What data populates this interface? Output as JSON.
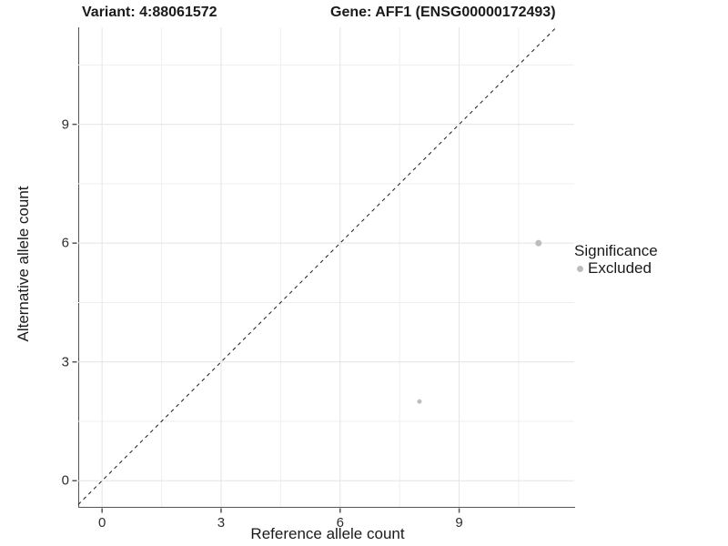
{
  "header": {
    "variant_title": "Variant: 4:88061572",
    "gene_title": "Gene: AFF1 (ENSG00000172493)"
  },
  "chart_data": {
    "type": "scatter",
    "title": "Variant: 4:88061572   Gene: AFF1 (ENSG00000172493)",
    "xlabel": "Reference allele count",
    "ylabel": "Alternative allele count",
    "xlim": [
      -0.6,
      11.9
    ],
    "ylim": [
      -0.66,
      11.45
    ],
    "x_ticks": [
      0,
      3,
      6,
      9
    ],
    "y_ticks": [
      0,
      3,
      6,
      9
    ],
    "x_minor_gridlines": [
      1.5,
      4.5,
      7.5,
      10.5
    ],
    "y_minor_gridlines": [
      1.5,
      4.5,
      7.5,
      10.5
    ],
    "grid": true,
    "identity_line": {
      "slope": 1,
      "intercept": 0,
      "style": "dashed"
    },
    "series": [
      {
        "name": "Excluded",
        "color": "#bdbdbd",
        "points": [
          {
            "x": 11,
            "y": 6,
            "r": 3.5
          },
          {
            "x": 8,
            "y": 2,
            "r": 2.5
          }
        ]
      }
    ],
    "legend": {
      "title": "Significance",
      "position": "right",
      "entries": [
        {
          "label": "Excluded",
          "color": "#bdbdbd"
        }
      ]
    },
    "colors": {
      "point": "#bdbdbd",
      "grid_major": "#e4e4e4",
      "grid_minor": "#efefef",
      "axis_line": "#555555",
      "tick_text": "#2e2e2e",
      "identity_line": "#1a1a1a"
    }
  }
}
